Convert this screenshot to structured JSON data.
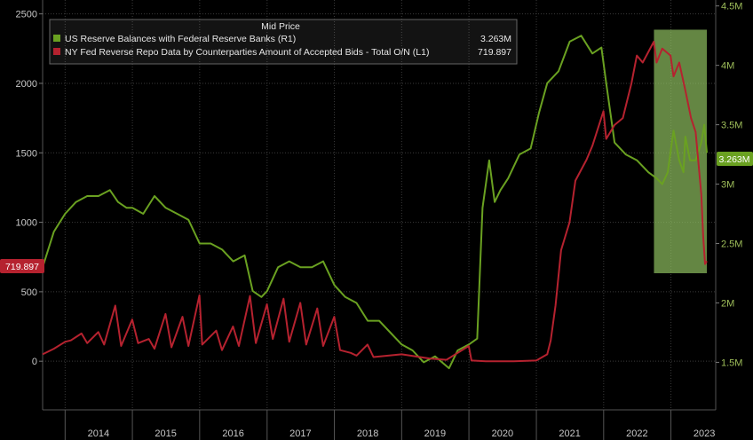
{
  "chart_data": {
    "type": "line",
    "title": "",
    "legend": {
      "title": "Mid Price",
      "placement": "top-left",
      "entries": [
        {
          "label": "US Reserve Balances with Federal Reserve Banks  (R1)",
          "value": "3.263M",
          "color": "#6aa121"
        },
        {
          "label": "NY Fed Reverse Repo Data by Counterparties Amount of Accepted Bids - Total O/N  (L1)",
          "value": "719.897",
          "color": "#b5222f"
        }
      ]
    },
    "x_axis": {
      "type": "date",
      "range": [
        "2013-09-01",
        "2023-09-01"
      ],
      "tick_labels": [
        "2014",
        "2015",
        "2016",
        "2017",
        "2018",
        "2019",
        "2020",
        "2021",
        "2022",
        "2023"
      ]
    },
    "y_left": {
      "range": [
        -350,
        2600
      ],
      "ticks": [
        0,
        500,
        1000,
        1500,
        2000,
        2500
      ],
      "tick_labels": [
        "0",
        "500",
        "1000",
        "1500",
        "2000",
        "2500"
      ]
    },
    "y_right": {
      "range": [
        1.1,
        4.55
      ],
      "ticks": [
        1.5,
        2,
        2.5,
        3,
        3.5,
        4,
        4.5
      ],
      "tick_labels": [
        "1.5M",
        "2M",
        "2.5M",
        "3M",
        "3.5M",
        "4M",
        "4.5M"
      ]
    },
    "last_value_labels": {
      "left": "719.897",
      "right": "3.263M"
    },
    "highlight_region": {
      "x_start": "2022-10-01",
      "x_end": "2023-07-15",
      "y_right_top": 4.3,
      "y_right_bottom": 2.25,
      "color": "#8fbf5f"
    },
    "grid": "both",
    "series": [
      {
        "name": "US Reserve Balances with Federal Reserve Banks  (R1)",
        "axis": "right",
        "color": "#6aa121",
        "x": [
          "2013-09-01",
          "2013-11-01",
          "2014-01-01",
          "2014-03-01",
          "2014-05-01",
          "2014-07-01",
          "2014-09-01",
          "2014-10-15",
          "2014-12-01",
          "2015-01-01",
          "2015-03-01",
          "2015-05-01",
          "2015-07-01",
          "2015-09-01",
          "2015-11-01",
          "2016-01-01",
          "2016-03-01",
          "2016-05-01",
          "2016-07-01",
          "2016-09-01",
          "2016-10-15",
          "2016-12-01",
          "2017-01-01",
          "2017-03-01",
          "2017-05-01",
          "2017-07-01",
          "2017-09-01",
          "2017-11-01",
          "2018-01-01",
          "2018-03-01",
          "2018-05-01",
          "2018-07-01",
          "2018-09-01",
          "2018-11-01",
          "2019-01-01",
          "2019-03-01",
          "2019-05-01",
          "2019-07-01",
          "2019-09-15",
          "2019-11-01",
          "2020-01-01",
          "2020-02-15",
          "2020-03-15",
          "2020-04-20",
          "2020-05-20",
          "2020-06-20",
          "2020-08-01",
          "2020-10-01",
          "2020-12-01",
          "2021-01-15",
          "2021-03-01",
          "2021-05-01",
          "2021-07-01",
          "2021-09-01",
          "2021-11-01",
          "2021-12-20",
          "2022-01-15",
          "2022-03-01",
          "2022-05-01",
          "2022-07-01",
          "2022-09-01",
          "2022-10-15",
          "2022-11-15",
          "2022-12-15",
          "2023-01-15",
          "2023-02-15",
          "2023-03-10",
          "2023-03-20",
          "2023-04-15",
          "2023-05-15",
          "2023-06-15",
          "2023-07-01",
          "2023-07-15"
        ],
        "values": [
          2.3,
          2.6,
          2.75,
          2.85,
          2.9,
          2.9,
          2.95,
          2.85,
          2.8,
          2.8,
          2.75,
          2.9,
          2.8,
          2.75,
          2.7,
          2.5,
          2.5,
          2.45,
          2.35,
          2.4,
          2.1,
          2.05,
          2.1,
          2.3,
          2.35,
          2.3,
          2.3,
          2.35,
          2.15,
          2.05,
          2.0,
          1.85,
          1.85,
          1.75,
          1.65,
          1.6,
          1.5,
          1.55,
          1.45,
          1.6,
          1.65,
          1.7,
          2.8,
          3.2,
          2.85,
          2.95,
          3.05,
          3.25,
          3.3,
          3.6,
          3.85,
          3.95,
          4.2,
          4.25,
          4.1,
          4.15,
          3.85,
          3.35,
          3.25,
          3.2,
          3.1,
          3.05,
          3.0,
          3.1,
          3.45,
          3.2,
          3.1,
          3.4,
          3.2,
          3.2,
          3.35,
          3.5,
          3.263
        ]
      },
      {
        "name": "NY Fed Reverse Repo Data by Counterparties Amount of Accepted Bids - Total O/N  (L1)",
        "axis": "left",
        "color": "#b5222f",
        "x": [
          "2013-09-01",
          "2013-11-01",
          "2014-01-01",
          "2014-02-01",
          "2014-03-31",
          "2014-05-01",
          "2014-06-30",
          "2014-08-01",
          "2014-09-30",
          "2014-11-01",
          "2014-12-31",
          "2015-02-01",
          "2015-03-31",
          "2015-05-01",
          "2015-06-30",
          "2015-08-01",
          "2015-09-30",
          "2015-11-01",
          "2015-12-31",
          "2016-01-15",
          "2016-03-31",
          "2016-05-01",
          "2016-06-30",
          "2016-08-01",
          "2016-09-30",
          "2016-11-01",
          "2016-12-31",
          "2017-02-01",
          "2017-03-31",
          "2017-05-01",
          "2017-06-30",
          "2017-08-01",
          "2017-09-30",
          "2017-11-01",
          "2017-12-31",
          "2018-02-01",
          "2018-03-31",
          "2018-05-01",
          "2018-06-30",
          "2018-08-01",
          "2019-01-01",
          "2019-06-01",
          "2019-09-01",
          "2019-12-31",
          "2020-01-15",
          "2020-04-01",
          "2020-09-01",
          "2021-01-01",
          "2021-03-01",
          "2021-03-20",
          "2021-04-15",
          "2021-05-15",
          "2021-06-30",
          "2021-08-01",
          "2021-09-30",
          "2021-11-01",
          "2021-12-31",
          "2022-01-15",
          "2022-03-01",
          "2022-04-15",
          "2022-06-01",
          "2022-06-30",
          "2022-08-01",
          "2022-09-30",
          "2022-10-15",
          "2022-11-15",
          "2022-12-30",
          "2023-01-15",
          "2023-02-15",
          "2023-03-20",
          "2023-04-20",
          "2023-05-15",
          "2023-06-15",
          "2023-06-25",
          "2023-07-05",
          "2023-07-15"
        ],
        "values": [
          50,
          90,
          140,
          150,
          200,
          130,
          210,
          120,
          400,
          110,
          300,
          130,
          160,
          90,
          340,
          100,
          320,
          110,
          475,
          120,
          220,
          80,
          250,
          110,
          470,
          130,
          410,
          160,
          450,
          140,
          420,
          120,
          380,
          110,
          320,
          80,
          60,
          40,
          120,
          30,
          50,
          20,
          10,
          110,
          5,
          0,
          0,
          5,
          50,
          150,
          400,
          800,
          1000,
          1300,
          1450,
          1550,
          1800,
          1600,
          1700,
          1750,
          2000,
          2200,
          2150,
          2300,
          2150,
          2250,
          2200,
          2050,
          2150,
          1950,
          1750,
          1650,
          1200,
          900,
          700,
          719.897
        ]
      }
    ]
  }
}
